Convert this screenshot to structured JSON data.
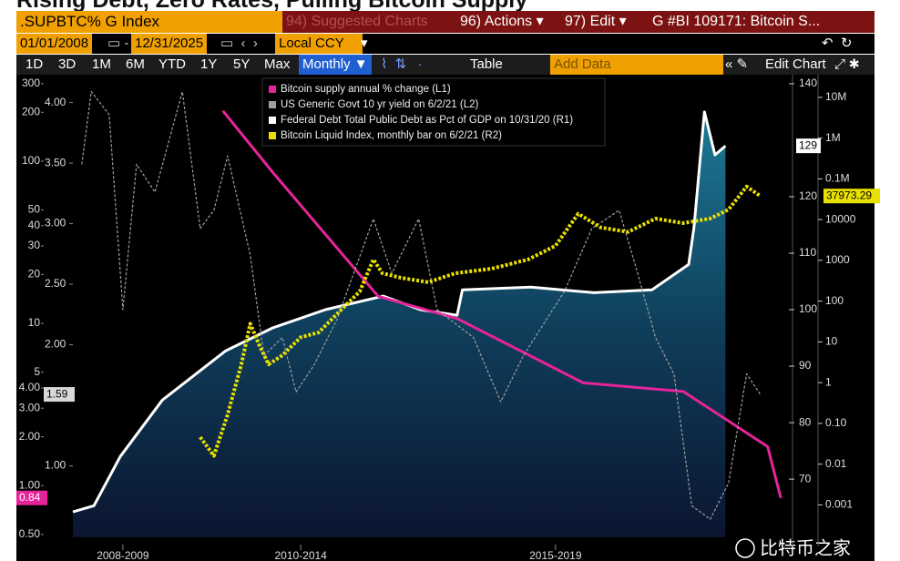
{
  "toolbar": {
    "security": ".SUPBTC% G Index",
    "menu": [
      "94) Suggested Charts",
      "96) Actions ▾",
      "97) Edit ▾"
    ],
    "chart_id": "G #BI 109171: Bitcoin S...",
    "start_date": "01/01/2008",
    "end_date": "12/31/2025",
    "currency": "Local CCY",
    "periods": [
      "1D",
      "3D",
      "1M",
      "6M",
      "YTD",
      "1Y",
      "5Y",
      "Max"
    ],
    "frequency": "Monthly ▼",
    "table": "Table",
    "add_data": "Add Data",
    "edit_chart": "Edit Chart"
  },
  "watermark": "比特币之家",
  "chart_data": {
    "type": "line",
    "title": "Rising Debt, Zero Rates, Pulling Bitcoin Supply",
    "xlim": [
      2008,
      2021.5
    ],
    "xticks": [
      {
        "value": 2008.95,
        "label": "2008-2009"
      },
      {
        "value": 2012.33,
        "label": "2010-2014"
      },
      {
        "value": 2017.17,
        "label": "2015-2019"
      }
    ],
    "ylim": [
      0.48,
      341
    ],
    "yscale": "log",
    "yticks": [
      300,
      200,
      100,
      50,
      40,
      30,
      20,
      10,
      5,
      {
        "value": 4,
        "label": "4.00"
      },
      {
        "value": 3,
        "label": "3.00"
      },
      {
        "value": 2,
        "label": "2.00"
      },
      {
        "value": 1,
        "label": "1.00"
      },
      {
        "value": 0.5,
        "label": "0.50"
      }
    ],
    "y2lim": [
      0.41,
      4.23
    ],
    "y2scale": "linear",
    "y2ticks": [
      {
        "value": 4,
        "label": "4.00"
      },
      {
        "value": 3.5,
        "label": "3.50"
      },
      {
        "value": 3,
        "label": "3.00"
      },
      {
        "value": 2.5,
        "label": "2.50"
      },
      {
        "value": 2,
        "label": "2.00"
      },
      {
        "value": 1,
        "label": "1.00"
      }
    ],
    "y3lim": [
      59.7,
      141.6
    ],
    "y3scale": "linear",
    "y3ticks": [
      140,
      120,
      110,
      100,
      90,
      80,
      70
    ],
    "y4lim": [
      0.00016,
      36000000
    ],
    "y4scale": "log",
    "y4ticks": [
      {
        "value": 10000000,
        "label": "10M"
      },
      {
        "value": 1000000,
        "label": "1M"
      },
      {
        "value": 100000,
        "label": "0.1M"
      },
      10000,
      1000,
      100,
      10,
      1,
      {
        "value": 0.1,
        "label": "0.10"
      },
      0.01,
      0.001
    ],
    "series": [
      {
        "name": "Bitcoin supply annual % change (L1)",
        "color": "#e6249a",
        "axis": "y",
        "x": [
          2010.85,
          2011.8,
          2013.8,
          2015.3,
          2017.7,
          2019.6,
          2021.2,
          2021.45
        ],
        "values": [
          204,
          85,
          14.7,
          10.7,
          4.3,
          3.8,
          1.74,
          0.84
        ]
      },
      {
        "name": "US Generic Govt 10 yr yield on 6/2/21 (L2)",
        "color": "#a0a0a0",
        "axis": "y2",
        "dash": true,
        "x": [
          2008.17,
          2008.35,
          2008.69,
          2008.95,
          2009.21,
          2009.56,
          2010.08,
          2010.42,
          2010.68,
          2010.94,
          2011.37,
          2011.63,
          2011.98,
          2012.24,
          2012.58,
          2013.02,
          2013.71,
          2014.06,
          2014.57,
          2014.92,
          2015.61,
          2016.13,
          2016.56,
          2017.0,
          2017.34,
          2017.86,
          2018.38,
          2018.73,
          2019.07,
          2019.42,
          2019.76,
          2020.11,
          2020.46,
          2020.8,
          2021.06
        ],
        "values": [
          3.49,
          4.09,
          3.9,
          2.29,
          3.49,
          3.26,
          4.09,
          2.96,
          3.11,
          3.56,
          2.74,
          1.91,
          2.06,
          1.61,
          1.83,
          2.21,
          3.04,
          2.59,
          3.04,
          2.29,
          2.06,
          1.53,
          1.91,
          2.21,
          2.44,
          2.96,
          3.11,
          2.59,
          2.06,
          1.76,
          0.67,
          0.56,
          0.86,
          1.76,
          1.59
        ]
      },
      {
        "name": "Federal Debt Total Public Debt as Pct of GDP on 10/31/20 (R1)",
        "color": "#ffffff",
        "axis": "y3",
        "area": true,
        "x": [
          2008.0,
          2008.4,
          2008.9,
          2009.7,
          2010.9,
          2011.8,
          2012.8,
          2013.9,
          2014.6,
          2015.3,
          2015.4,
          2016.7,
          2017.9,
          2019.0,
          2019.7,
          2019.8,
          2020.0,
          2020.2,
          2020.4
        ],
        "values": [
          64.2,
          65.3,
          74,
          84,
          92.7,
          96.8,
          100,
          102.4,
          100,
          99,
          103.5,
          104,
          103,
          103.5,
          108,
          114.5,
          135,
          127.4,
          129
        ]
      },
      {
        "name": "Bitcoin Liquid Index, monthly bar on 6/2/21 (R2)",
        "color": "#e8e000",
        "axis": "y4",
        "bars": true,
        "x": [
          2010.42,
          2010.68,
          2010.94,
          2011.2,
          2011.37,
          2011.55,
          2011.72,
          2011.98,
          2012.33,
          2012.67,
          2013.1,
          2013.45,
          2013.71,
          2013.88,
          2014.23,
          2014.75,
          2015.27,
          2015.96,
          2016.65,
          2017.17,
          2017.6,
          2018.03,
          2018.55,
          2019.07,
          2019.59,
          2020.11,
          2020.46,
          2020.8,
          2021.06
        ],
        "values": [
          0.046,
          0.016,
          0.165,
          2.8,
          28,
          7.9,
          2.8,
          4.7,
          13,
          17,
          62,
          172,
          1050,
          485,
          375,
          290,
          485,
          625,
          1050,
          2280,
          13900,
          6400,
          4990,
          10600,
          8200,
          10600,
          17700,
          65000,
          37973.29
        ]
      }
    ]
  }
}
